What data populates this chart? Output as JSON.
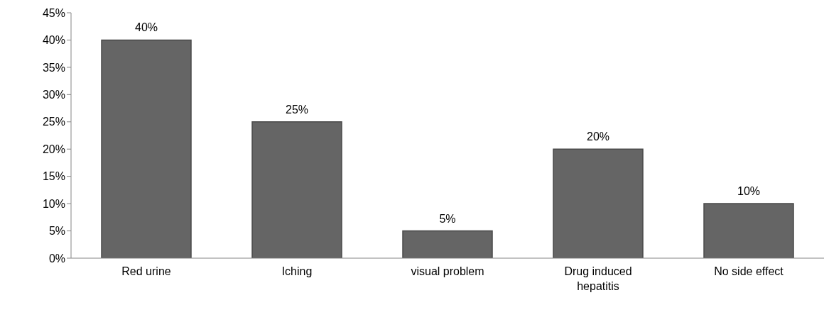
{
  "chart_data": {
    "type": "bar",
    "categories": [
      "Red urine",
      "Iching",
      "visual problem",
      "Drug induced hepatitis",
      "No side effect"
    ],
    "values": [
      40,
      25,
      5,
      20,
      10
    ],
    "value_labels": [
      "40%",
      "25%",
      "5%",
      "20%",
      "10%"
    ],
    "color": "#656565",
    "ylim": [
      0,
      45
    ],
    "yticks": [
      {
        "value": 0,
        "label": "0%"
      },
      {
        "value": 5,
        "label": "5%"
      },
      {
        "value": 10,
        "label": "10%"
      },
      {
        "value": 15,
        "label": "15%"
      },
      {
        "value": 20,
        "label": "20%"
      },
      {
        "value": 25,
        "label": "25%"
      },
      {
        "value": 30,
        "label": "30%"
      },
      {
        "value": 35,
        "label": "35%"
      },
      {
        "value": 40,
        "label": "40%"
      },
      {
        "value": 45,
        "label": "45%"
      }
    ],
    "grid": false,
    "legend": false
  }
}
